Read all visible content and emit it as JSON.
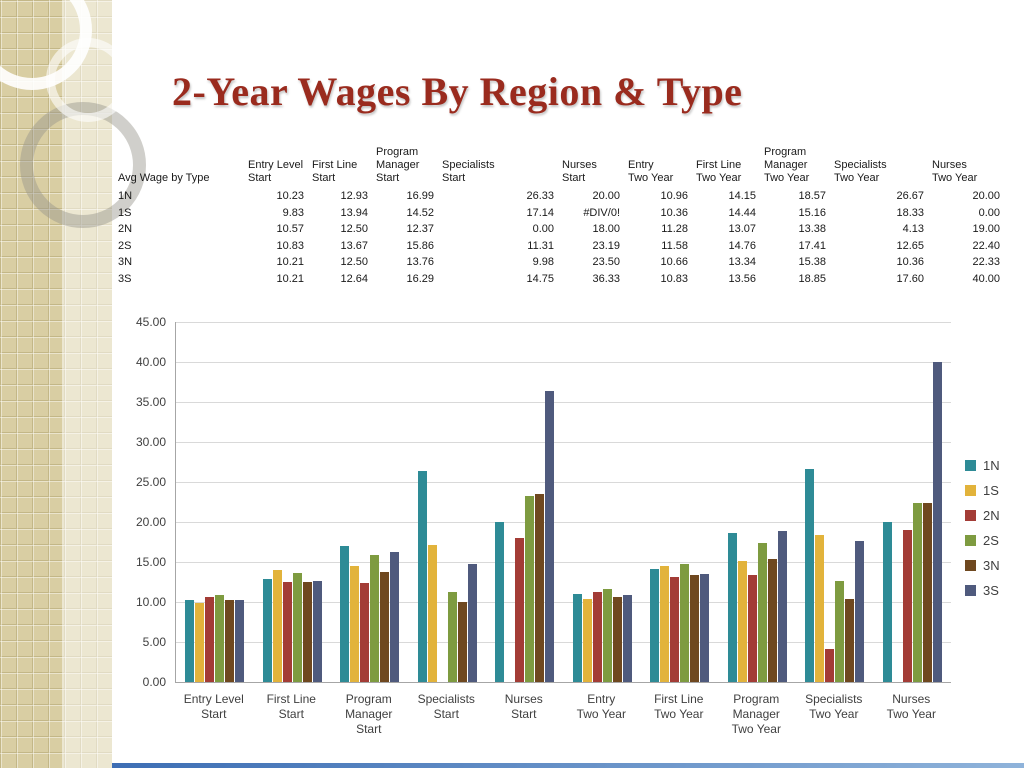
{
  "slide": {
    "title": "2-Year Wages By Region & Type"
  },
  "table": {
    "row_header": "Avg Wage by Type",
    "columns": [
      "Entry Level Start",
      "First Line Start",
      "Program Manager Start",
      "Specialists Start",
      "Nurses Start",
      "Entry Two Year",
      "First Line Two Year",
      "Program Manager Two Year",
      "Specialists Two Year",
      "Nurses Two Year"
    ],
    "column_lines": [
      [
        "Entry Level",
        "Start"
      ],
      [
        "First Line",
        "Start"
      ],
      [
        "Program",
        "Manager",
        "Start"
      ],
      [
        "Specialists",
        "Start"
      ],
      [
        "Nurses",
        "Start"
      ],
      [
        "Entry",
        "Two Year"
      ],
      [
        "First Line",
        "Two Year"
      ],
      [
        "Program",
        "Manager",
        "Two Year"
      ],
      [
        "Specialists",
        "Two Year"
      ],
      [
        "Nurses",
        "Two Year"
      ]
    ],
    "rows": [
      {
        "label": "1N",
        "values": [
          "10.23",
          "12.93",
          "16.99",
          "26.33",
          "20.00",
          "10.96",
          "14.15",
          "18.57",
          "26.67",
          "20.00"
        ]
      },
      {
        "label": "1S",
        "values": [
          "9.83",
          "13.94",
          "14.52",
          "17.14",
          "#DIV/0!",
          "10.36",
          "14.44",
          "15.16",
          "18.33",
          "0.00"
        ]
      },
      {
        "label": "2N",
        "values": [
          "10.57",
          "12.50",
          "12.37",
          "0.00",
          "18.00",
          "11.28",
          "13.07",
          "13.38",
          "4.13",
          "19.00"
        ]
      },
      {
        "label": "2S",
        "values": [
          "10.83",
          "13.67",
          "15.86",
          "11.31",
          "23.19",
          "11.58",
          "14.76",
          "17.41",
          "12.65",
          "22.40"
        ]
      },
      {
        "label": "3N",
        "values": [
          "10.21",
          "12.50",
          "13.76",
          "9.98",
          "23.50",
          "10.66",
          "13.34",
          "15.38",
          "10.36",
          "22.33"
        ]
      },
      {
        "label": "3S",
        "values": [
          "10.21",
          "12.64",
          "16.29",
          "14.75",
          "36.33",
          "10.83",
          "13.56",
          "18.85",
          "17.60",
          "40.00"
        ]
      }
    ]
  },
  "chart_data": {
    "type": "bar",
    "title": "",
    "categories": [
      "Entry Level Start",
      "First Line Start",
      "Program Manager Start",
      "Specialists Start",
      "Nurses Start",
      "Entry Two Year",
      "First Line Two Year",
      "Program Manager Two Year",
      "Specialists Two Year",
      "Nurses Two Year"
    ],
    "category_lines": [
      [
        "Entry Level",
        "Start"
      ],
      [
        "First Line",
        "Start"
      ],
      [
        "Program",
        "Manager",
        "Start"
      ],
      [
        "Specialists",
        "Start"
      ],
      [
        "Nurses",
        "Start"
      ],
      [
        "Entry",
        "Two Year"
      ],
      [
        "First Line",
        "Two Year"
      ],
      [
        "Program",
        "Manager",
        "Two Year"
      ],
      [
        "Specialists",
        "Two Year"
      ],
      [
        "Nurses",
        "Two Year"
      ]
    ],
    "series": [
      {
        "name": "1N",
        "color": "#2E8B96",
        "values": [
          10.23,
          12.93,
          16.99,
          26.33,
          20.0,
          10.96,
          14.15,
          18.57,
          26.67,
          20.0
        ]
      },
      {
        "name": "1S",
        "color": "#E2B33B",
        "values": [
          9.83,
          13.94,
          14.52,
          17.14,
          null,
          10.36,
          14.44,
          15.16,
          18.33,
          0.0
        ]
      },
      {
        "name": "2N",
        "color": "#A33C36",
        "values": [
          10.57,
          12.5,
          12.37,
          0.0,
          18.0,
          11.28,
          13.07,
          13.38,
          4.13,
          19.0
        ]
      },
      {
        "name": "2S",
        "color": "#7E9B40",
        "values": [
          10.83,
          13.67,
          15.86,
          11.31,
          23.19,
          11.58,
          14.76,
          17.41,
          12.65,
          22.4
        ]
      },
      {
        "name": "3N",
        "color": "#6F481F",
        "values": [
          10.21,
          12.5,
          13.76,
          9.98,
          23.5,
          10.66,
          13.34,
          15.38,
          10.36,
          22.33
        ]
      },
      {
        "name": "3S",
        "color": "#4F5A7D",
        "values": [
          10.21,
          12.64,
          16.29,
          14.75,
          36.33,
          10.83,
          13.56,
          18.85,
          17.6,
          40.0
        ]
      }
    ],
    "xlabel": "",
    "ylabel": "",
    "ylim": [
      0,
      45
    ],
    "y_tick_step": 5,
    "y_tick_labels": [
      "45.00",
      "40.00",
      "35.00",
      "30.00",
      "25.00",
      "20.00",
      "15.00",
      "10.00",
      "5.00",
      "0.00"
    ],
    "grid": true,
    "legend_position": "right"
  }
}
